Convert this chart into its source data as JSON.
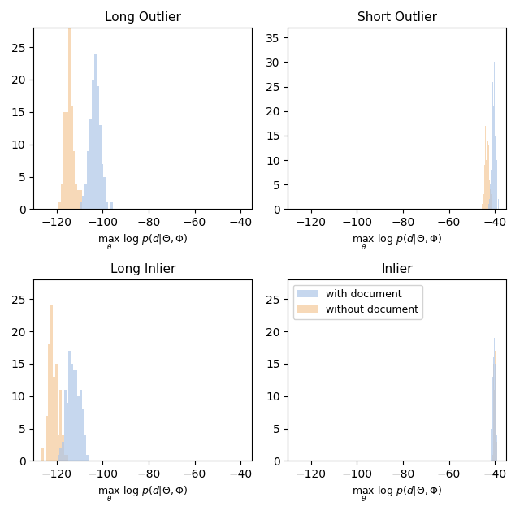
{
  "subplots": [
    {
      "title": "Long Outlier",
      "ylim": [
        0,
        28
      ],
      "with_mean": -103.5,
      "with_std": 2.5,
      "with_n": 120,
      "without_mean": -114.0,
      "without_std": 2.0,
      "without_n": 100
    },
    {
      "title": "Short Outlier",
      "ylim": [
        0,
        37
      ],
      "with_mean": -40.5,
      "with_std": 1.0,
      "with_n": 120,
      "without_mean": -43.0,
      "without_std": 1.2,
      "without_n": 80
    },
    {
      "title": "Long Inlier",
      "ylim": [
        0,
        28
      ],
      "with_mean": -113.5,
      "with_std": 3.0,
      "with_n": 120,
      "without_mean": -121.0,
      "without_std": 2.0,
      "without_n": 100
    },
    {
      "title": "Inlier",
      "ylim": [
        0,
        28
      ],
      "with_mean": -40.5,
      "with_std": 0.8,
      "with_n": 100,
      "without_mean": -40.0,
      "without_std": 0.5,
      "without_n": 80
    }
  ],
  "color_with": "#aec6e8",
  "color_without": "#f5c99a",
  "alpha": 0.7,
  "xlim": [
    -130,
    -35
  ],
  "xticks": [
    -120,
    -100,
    -80,
    -60,
    -40
  ],
  "bins": 20,
  "legend_labels": [
    "with document",
    "without document"
  ]
}
